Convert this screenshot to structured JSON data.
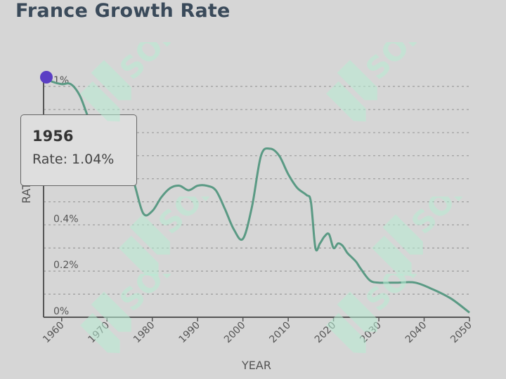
{
  "title": "France Growth Rate",
  "tooltip": {
    "year": "1956",
    "rate_label": "Rate: 1.04%"
  },
  "colors": {
    "line": "#5a9a84",
    "marker": "#5b3fc4",
    "watermark": "#b8ecd4"
  },
  "watermark_text": "SOFF",
  "chart_data": {
    "type": "line",
    "title": "France Growth Rate",
    "xlabel": "YEAR",
    "ylabel": "RATE",
    "xlim": [
      1956,
      2050
    ],
    "ylim": [
      0,
      1.04
    ],
    "x_ticks": [
      1960,
      1970,
      1980,
      1990,
      2000,
      2010,
      2020,
      2030,
      2040,
      2050
    ],
    "y_ticks": [
      {
        "value": 0,
        "label": "0%"
      },
      {
        "value": 0.2,
        "label": "0.2%"
      },
      {
        "value": 0.4,
        "label": "0.4%"
      },
      {
        "value": 1.0,
        "label": "1%"
      }
    ],
    "grid": true,
    "series": [
      {
        "x": [
          1956,
          1958,
          1960,
          1962,
          1964,
          1966,
          1968,
          1970,
          1972,
          1974,
          1976,
          1978,
          1980,
          1982,
          1984,
          1986,
          1988,
          1990,
          1992,
          1994,
          1996,
          1998,
          2000,
          2002,
          2004,
          2006,
          2008,
          2010,
          2012,
          2014,
          2015,
          2016,
          2017,
          2018,
          2019,
          2020,
          2021,
          2022,
          2023,
          2024,
          2025,
          2026,
          2028,
          2030,
          2034,
          2038,
          2042,
          2046,
          2050
        ],
        "y": [
          1.04,
          1.02,
          1.01,
          1.01,
          0.96,
          0.86,
          0.8,
          0.78,
          0.74,
          0.68,
          0.58,
          0.45,
          0.46,
          0.52,
          0.56,
          0.57,
          0.55,
          0.57,
          0.57,
          0.55,
          0.47,
          0.38,
          0.34,
          0.48,
          0.7,
          0.73,
          0.7,
          0.62,
          0.56,
          0.53,
          0.5,
          0.3,
          0.32,
          0.35,
          0.36,
          0.3,
          0.32,
          0.31,
          0.28,
          0.26,
          0.24,
          0.21,
          0.16,
          0.15,
          0.15,
          0.15,
          0.12,
          0.08,
          0.02
        ]
      }
    ],
    "highlight_point": {
      "x": 1956,
      "y": 1.04
    }
  }
}
